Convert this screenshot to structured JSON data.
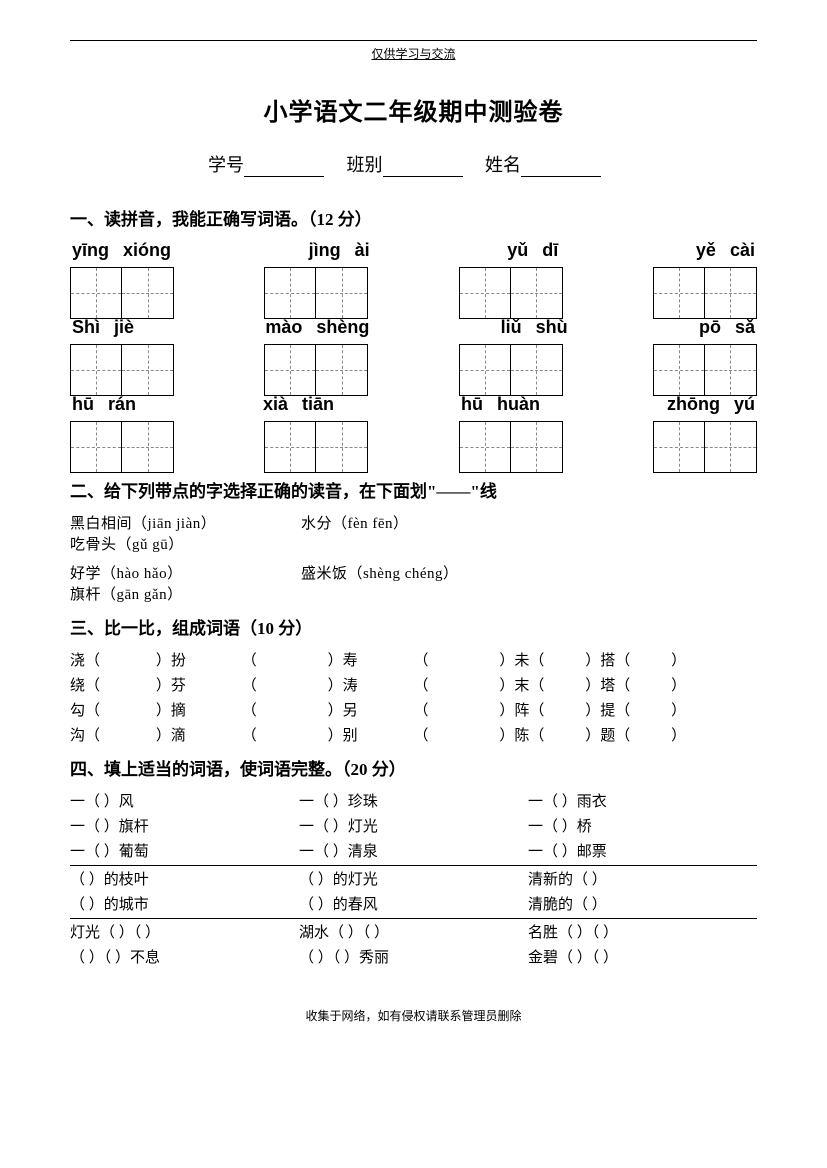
{
  "header_note": "仅供学习与交流",
  "title": "小学语文二年级期中测验卷",
  "info": {
    "id": "学号",
    "class": "班别",
    "name": "姓名"
  },
  "s1": {
    "heading": "一、读拼音，我能正确写词语。（12 分）",
    "row1": [
      "yīng",
      "xióng",
      "jìng",
      "ài",
      "yǔ",
      "dī",
      "yě",
      "cài"
    ],
    "row2": [
      "Shì",
      "jiè",
      "mào",
      "shèng",
      "liǔ",
      "shù",
      "pō",
      "sǎ"
    ],
    "row3": [
      "hū",
      "rán",
      "xià",
      "tiān",
      "hū",
      "huàn",
      "zhōng",
      "yú"
    ]
  },
  "s2": {
    "heading": "二、给下列带点的字选择正确的读音，在下面划\"——\"线",
    "line1_a": "黑白相间（jiān jiàn）",
    "line1_b": "水分（fèn  fēn）",
    "line1_c": "吃骨头（gǔ gū）",
    "line2_a": "好学（hào hǎo）",
    "line2_b": "盛米饭（shèng chéng）",
    "line2_c": "旗杆（gān  gǎn）"
  },
  "s3": {
    "heading": "三、比一比，组成词语（10 分）",
    "rows": [
      [
        "浇（",
        "）扮",
        "（",
        "）寿",
        "（",
        "）未（",
        "）搭（",
        "）"
      ],
      [
        "绕（",
        "）芬",
        "（",
        "）涛",
        "（",
        "）末（",
        "）塔（",
        "）"
      ],
      [
        "勾（",
        "）摘",
        "（",
        "）另",
        "（",
        "）阵（",
        "）提（",
        "）"
      ],
      [
        "沟（",
        "）滴",
        "（",
        "）别",
        "（",
        "）陈（",
        "）题（",
        "）"
      ]
    ]
  },
  "s4": {
    "heading": "四、填上适当的词语，使词语完整。（20 分）",
    "rows_a": [
      [
        "一（      ）风",
        "一（      ）珍珠",
        "一（      ）雨衣"
      ],
      [
        "一（      ）旗杆",
        "一（      ）灯光",
        "一（      ）桥"
      ],
      [
        "一（      ）葡萄",
        "一（      ）清泉",
        "一（      ）邮票"
      ]
    ],
    "rows_b": [
      [
        "（      ）的枝叶",
        "（      ）的灯光",
        "清新的（      ）"
      ],
      [
        "（      ）的城市",
        "（      ）的春风",
        "清脆的（      ）"
      ]
    ],
    "rows_c": [
      [
        "灯光（    ）（    ）",
        "湖水（    ）（    ）",
        "名胜（    ）（    ）"
      ],
      [
        "（    ）（    ）不息",
        "（    ）（    ）秀丽",
        "金碧（    ）（    ）"
      ]
    ]
  },
  "footer": "收集于网络，如有侵权请联系管理员删除"
}
